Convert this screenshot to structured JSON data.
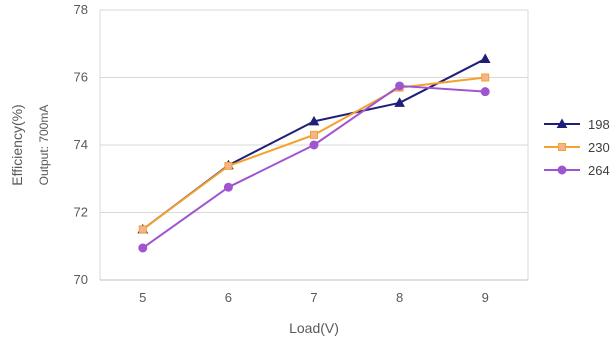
{
  "chart_data": {
    "type": "line",
    "title": "",
    "xlabel": "Load(V)",
    "ylabel": "Efficiency(%)",
    "ylabel_sub": "Output:  700mA",
    "x": [
      5,
      6,
      7,
      8,
      9
    ],
    "x_tick_labels": [
      "5",
      "6",
      "7",
      "8",
      "9"
    ],
    "y_ticks": [
      70,
      72,
      74,
      76,
      78
    ],
    "y_tick_labels": [
      "70",
      "72",
      "74",
      "76",
      "78"
    ],
    "xlim": [
      4.5,
      9.5
    ],
    "ylim": [
      70,
      78
    ],
    "grid": "horizontal",
    "legend_position": "right",
    "series": [
      {
        "name": "198",
        "values": [
          71.5,
          73.4,
          74.7,
          75.25,
          76.55
        ],
        "color": "#1f1f7a",
        "marker": "triangle"
      },
      {
        "name": "230",
        "values": [
          71.5,
          73.38,
          74.3,
          75.7,
          76.0
        ],
        "color": "#f4a12e",
        "marker": "square",
        "marker_fill": "#f2b58d"
      },
      {
        "name": "264",
        "values": [
          70.95,
          72.75,
          74.0,
          75.75,
          75.58
        ],
        "color": "#9e55cf",
        "marker": "circle"
      }
    ]
  }
}
